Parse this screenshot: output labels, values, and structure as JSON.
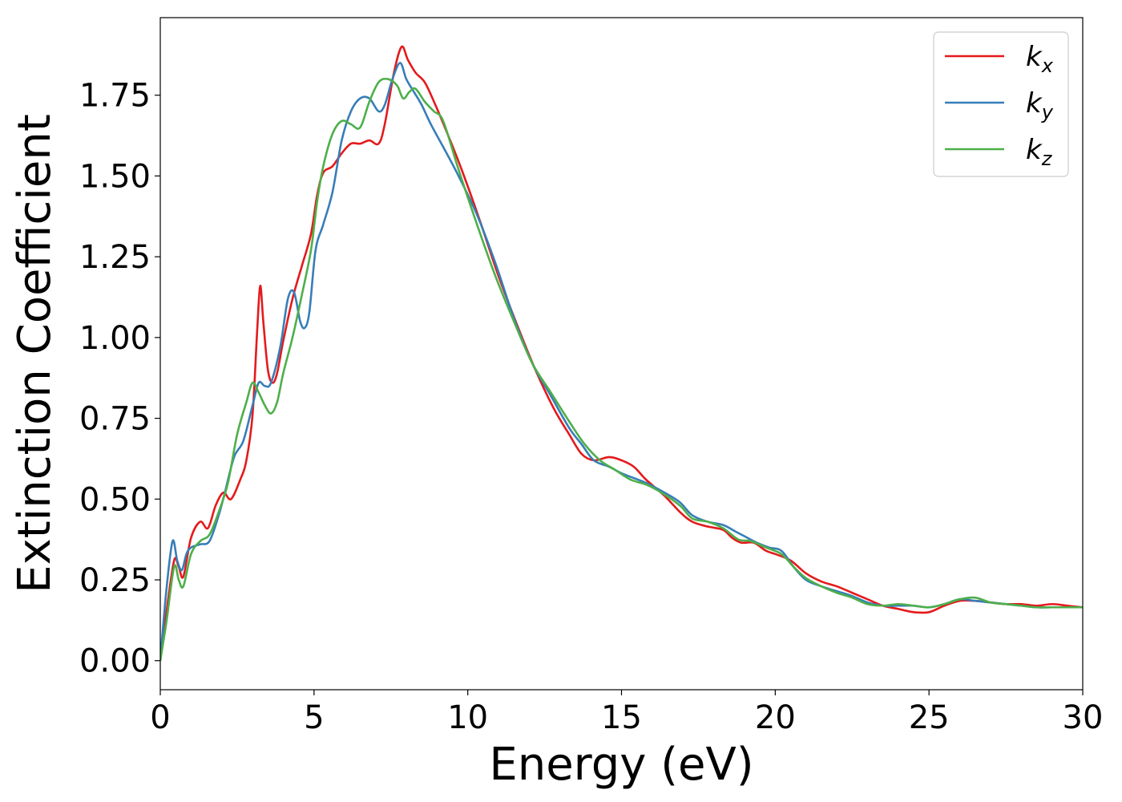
{
  "chart_data": {
    "type": "line",
    "xlabel": "Energy (eV)",
    "ylabel": "Extinction Coefficient",
    "xlim": [
      0,
      30
    ],
    "ylim": [
      -0.09,
      1.99
    ],
    "xticks": [
      0,
      5,
      10,
      15,
      20,
      25,
      30
    ],
    "xtick_labels": [
      "0",
      "5",
      "10",
      "15",
      "20",
      "25",
      "30"
    ],
    "yticks": [
      0,
      0.25,
      0.5,
      0.75,
      1.0,
      1.25,
      1.5,
      1.75
    ],
    "ytick_labels": [
      "0.00",
      "0.25",
      "0.50",
      "0.75",
      "1.00",
      "1.25",
      "1.50",
      "1.75"
    ],
    "grid": false,
    "legend_position": "top-right",
    "series": [
      {
        "name": "k",
        "subscript": "x",
        "color": "#e41a1c",
        "x": [
          0,
          0.2,
          0.45,
          0.6,
          0.75,
          1.0,
          1.3,
          1.55,
          1.8,
          2.05,
          2.3,
          2.6,
          2.8,
          3.0,
          3.15,
          3.25,
          3.35,
          3.5,
          3.65,
          3.8,
          4.0,
          4.3,
          4.6,
          4.9,
          5.1,
          5.3,
          5.6,
          5.9,
          6.2,
          6.5,
          6.8,
          7.1,
          7.3,
          7.6,
          7.85,
          8.05,
          8.3,
          8.6,
          8.9,
          9.3,
          9.8,
          10.4,
          11.0,
          11.6,
          12.2,
          12.8,
          13.3,
          13.7,
          14.1,
          14.6,
          15.0,
          15.4,
          15.8,
          16.4,
          16.9,
          17.3,
          17.8,
          18.3,
          18.6,
          18.9,
          19.3,
          19.7,
          20.0,
          20.5,
          21.0,
          21.5,
          22.0,
          22.5,
          23.0,
          23.5,
          24.0,
          24.5,
          25.0,
          25.5,
          26.0,
          26.5,
          27.0,
          27.5,
          28.0,
          28.5,
          29.0,
          29.5,
          30.0
        ],
        "y": [
          0.0,
          0.15,
          0.31,
          0.29,
          0.26,
          0.38,
          0.43,
          0.41,
          0.48,
          0.52,
          0.5,
          0.56,
          0.62,
          0.76,
          1.02,
          1.16,
          1.05,
          0.9,
          0.86,
          0.89,
          0.99,
          1.12,
          1.22,
          1.32,
          1.44,
          1.51,
          1.53,
          1.57,
          1.6,
          1.6,
          1.61,
          1.6,
          1.66,
          1.82,
          1.9,
          1.86,
          1.82,
          1.79,
          1.73,
          1.64,
          1.52,
          1.36,
          1.19,
          1.04,
          0.9,
          0.78,
          0.7,
          0.64,
          0.62,
          0.63,
          0.62,
          0.6,
          0.56,
          0.51,
          0.46,
          0.43,
          0.415,
          0.405,
          0.38,
          0.365,
          0.365,
          0.34,
          0.33,
          0.31,
          0.27,
          0.245,
          0.23,
          0.21,
          0.19,
          0.17,
          0.16,
          0.15,
          0.15,
          0.17,
          0.185,
          0.185,
          0.18,
          0.175,
          0.175,
          0.17,
          0.175,
          0.17,
          0.165
        ]
      },
      {
        "name": "k",
        "subscript": "y",
        "color": "#377eb8",
        "x": [
          0,
          0.2,
          0.4,
          0.55,
          0.7,
          0.85,
          1.0,
          1.3,
          1.6,
          1.9,
          2.1,
          2.4,
          2.7,
          3.0,
          3.2,
          3.4,
          3.6,
          3.9,
          4.15,
          4.35,
          4.55,
          4.7,
          4.85,
          5.05,
          5.3,
          5.6,
          5.9,
          6.2,
          6.5,
          6.8,
          7.1,
          7.3,
          7.55,
          7.8,
          8.0,
          8.25,
          8.5,
          8.8,
          9.2,
          9.7,
          10.3,
          10.9,
          11.5,
          12.1,
          12.7,
          13.3,
          13.7,
          14.1,
          14.6,
          15.0,
          15.4,
          15.8,
          16.4,
          16.9,
          17.3,
          17.8,
          18.3,
          18.7,
          19.0,
          19.4,
          19.8,
          20.2,
          20.6,
          21.0,
          21.5,
          22.0,
          22.5,
          23.0,
          23.5,
          24.0,
          24.5,
          25.0,
          25.5,
          26.0,
          26.5,
          27.0,
          27.5,
          28.0,
          28.5,
          29.0,
          29.5,
          30.0
        ],
        "y": [
          0.0,
          0.22,
          0.37,
          0.31,
          0.28,
          0.33,
          0.35,
          0.36,
          0.37,
          0.45,
          0.52,
          0.63,
          0.68,
          0.79,
          0.86,
          0.85,
          0.86,
          0.97,
          1.12,
          1.14,
          1.05,
          1.03,
          1.08,
          1.27,
          1.35,
          1.45,
          1.61,
          1.7,
          1.74,
          1.74,
          1.7,
          1.72,
          1.8,
          1.85,
          1.8,
          1.76,
          1.72,
          1.66,
          1.59,
          1.5,
          1.38,
          1.23,
          1.06,
          0.92,
          0.82,
          0.72,
          0.67,
          0.62,
          0.6,
          0.58,
          0.565,
          0.55,
          0.52,
          0.49,
          0.45,
          0.43,
          0.42,
          0.4,
          0.385,
          0.365,
          0.35,
          0.34,
          0.29,
          0.25,
          0.23,
          0.215,
          0.2,
          0.18,
          0.17,
          0.17,
          0.17,
          0.165,
          0.175,
          0.19,
          0.185,
          0.18,
          0.175,
          0.17,
          0.165,
          0.165,
          0.165,
          0.165
        ]
      },
      {
        "name": "k",
        "subscript": "z",
        "color": "#4daf4a",
        "x": [
          0,
          0.2,
          0.45,
          0.6,
          0.75,
          1.0,
          1.3,
          1.6,
          1.9,
          2.2,
          2.5,
          2.8,
          3.0,
          3.2,
          3.4,
          3.6,
          3.8,
          4.0,
          4.3,
          4.6,
          4.9,
          5.1,
          5.3,
          5.6,
          5.9,
          6.2,
          6.5,
          6.8,
          7.1,
          7.4,
          7.7,
          7.9,
          8.1,
          8.3,
          8.6,
          8.9,
          9.2,
          9.7,
          10.3,
          10.9,
          11.5,
          12.1,
          12.7,
          13.3,
          13.8,
          14.3,
          14.8,
          15.3,
          15.8,
          16.3,
          16.9,
          17.3,
          17.8,
          18.3,
          18.8,
          19.2,
          19.7,
          20.2,
          20.6,
          21.0,
          21.5,
          22.0,
          22.5,
          23.0,
          23.5,
          24.0,
          24.5,
          25.0,
          25.5,
          26.0,
          26.5,
          27.0,
          27.5,
          28.0,
          28.5,
          29.0,
          29.5,
          30.0
        ],
        "y": [
          0.0,
          0.12,
          0.29,
          0.25,
          0.23,
          0.33,
          0.37,
          0.39,
          0.46,
          0.55,
          0.7,
          0.8,
          0.86,
          0.83,
          0.79,
          0.765,
          0.8,
          0.89,
          1.0,
          1.13,
          1.27,
          1.42,
          1.53,
          1.63,
          1.67,
          1.66,
          1.65,
          1.73,
          1.79,
          1.8,
          1.78,
          1.74,
          1.76,
          1.77,
          1.73,
          1.7,
          1.67,
          1.52,
          1.35,
          1.19,
          1.05,
          0.92,
          0.83,
          0.74,
          0.67,
          0.62,
          0.59,
          0.56,
          0.545,
          0.52,
          0.48,
          0.44,
          0.43,
          0.41,
          0.375,
          0.37,
          0.35,
          0.33,
          0.29,
          0.255,
          0.23,
          0.21,
          0.195,
          0.175,
          0.17,
          0.175,
          0.17,
          0.165,
          0.175,
          0.19,
          0.195,
          0.18,
          0.175,
          0.17,
          0.165,
          0.165,
          0.165,
          0.165
        ]
      }
    ]
  }
}
